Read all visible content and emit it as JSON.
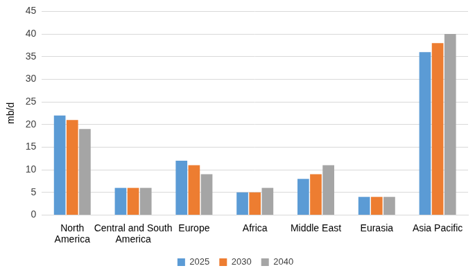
{
  "chart_data": {
    "type": "bar",
    "y_label": "mb/d",
    "categories": [
      "North America",
      "Central and South America",
      "Europe",
      "Africa",
      "Middle East",
      "Eurasia",
      "Asia Pacific"
    ],
    "series": [
      {
        "name": "2025",
        "color": "#5B9BD5",
        "values": [
          22,
          6,
          12,
          5,
          8,
          4,
          36
        ]
      },
      {
        "name": "2030",
        "color": "#ED7D31",
        "values": [
          21,
          6,
          11,
          5,
          9,
          4,
          38
        ]
      },
      {
        "name": "2040",
        "color": "#A5A5A5",
        "values": [
          19,
          6,
          9,
          6,
          11,
          4,
          40
        ]
      }
    ],
    "ylim": [
      0,
      45
    ],
    "yticks": [
      0,
      5,
      10,
      15,
      20,
      25,
      30,
      35,
      40,
      45
    ],
    "grid": true,
    "legend": "bottom"
  }
}
